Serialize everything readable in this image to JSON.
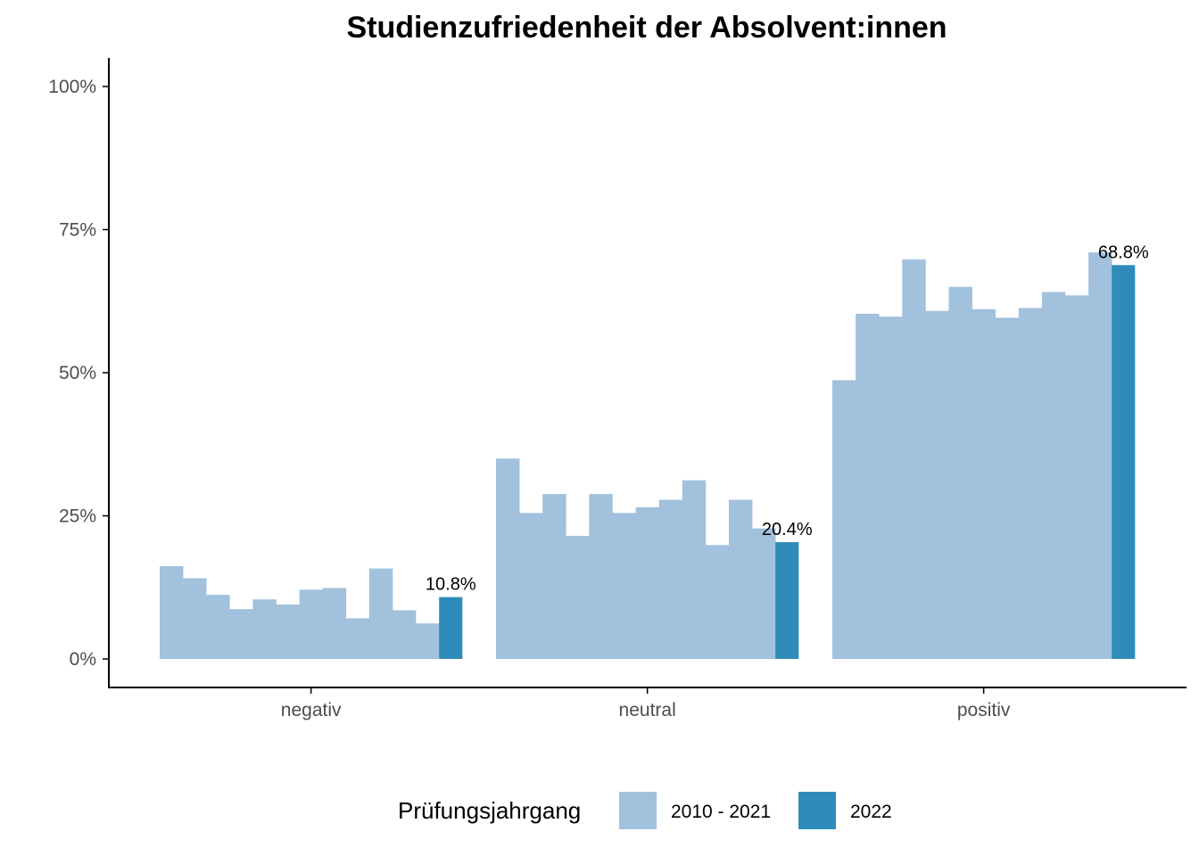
{
  "chart_data": {
    "type": "bar",
    "title": "Studienzufriedenheit der Absolvent:innen",
    "xlabel": "",
    "ylabel": "",
    "ylim": [
      0,
      1.0
    ],
    "y_ticks": [
      0,
      0.25,
      0.5,
      0.75,
      1.0
    ],
    "y_tick_labels": [
      "0%",
      "25%",
      "50%",
      "75%",
      "100%"
    ],
    "categories": [
      "negativ",
      "neutral",
      "positiv"
    ],
    "colors": {
      "history": "#a1c1dd",
      "current": "#2f8cba",
      "axis": "#000000",
      "tick_text": "#4d4d4d"
    },
    "series": [
      {
        "name": "2010 - 2021",
        "values": [
          [
            0.162,
            0.141,
            0.112,
            0.087,
            0.104,
            0.095,
            0.121,
            0.124,
            0.071,
            0.158,
            0.085,
            0.062
          ],
          [
            0.35,
            0.255,
            0.288,
            0.215,
            0.288,
            0.255,
            0.265,
            0.278,
            0.312,
            0.199,
            0.278,
            0.228
          ],
          [
            0.487,
            0.603,
            0.598,
            0.698,
            0.608,
            0.65,
            0.611,
            0.596,
            0.613,
            0.641,
            0.635,
            0.71
          ]
        ]
      },
      {
        "name": "2022",
        "values": [
          0.108,
          0.204,
          0.688
        ],
        "data_labels": [
          "10.8%",
          "20.4%",
          "68.8%"
        ]
      }
    ],
    "legend": {
      "title": "Prüfungsjahrgang",
      "entries": [
        "2010 - 2021",
        "2022"
      ],
      "placement": "bottom"
    },
    "grid": false
  }
}
